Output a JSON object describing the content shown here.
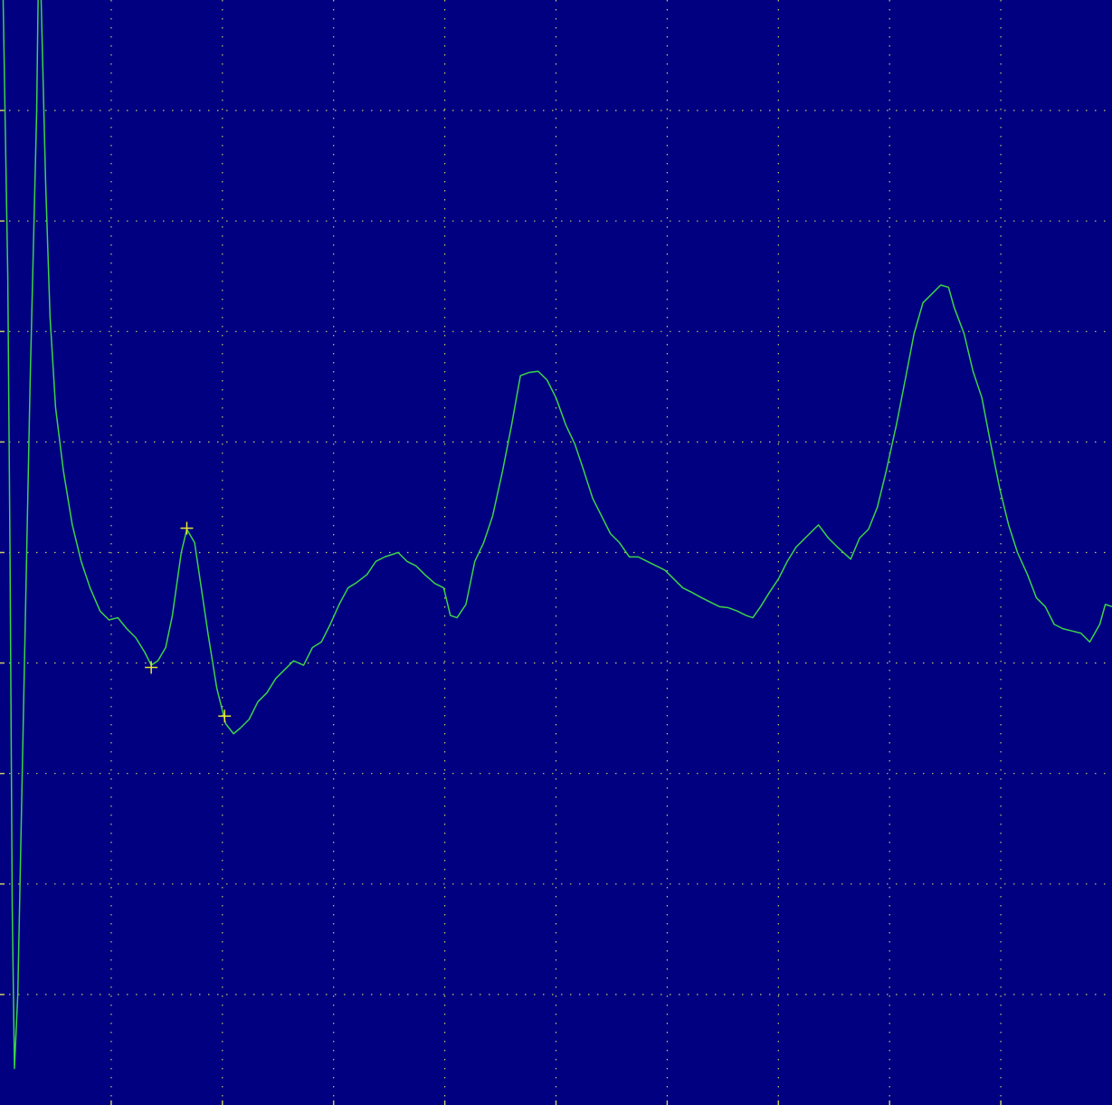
{
  "chart_data": {
    "type": "line",
    "xlim": [
      0,
      10
    ],
    "ylim": [
      -5,
      5
    ],
    "xticks": [
      1,
      2,
      3,
      4,
      5,
      6,
      7,
      8,
      9
    ],
    "yticks": [
      -4,
      -3,
      -2,
      -1,
      0,
      1,
      2,
      3,
      4
    ],
    "grid": true,
    "background": "#000080",
    "grid_color": "#c8c864",
    "series": [
      {
        "color": "#3cd24a",
        "x": [
          0.02,
          0.07,
          0.09,
          0.11,
          0.13,
          0.16,
          0.21,
          0.27,
          0.33,
          0.35,
          0.37,
          0.41,
          0.45,
          0.5,
          0.57,
          0.65,
          0.73,
          0.81,
          0.9,
          0.98,
          1.06,
          1.14,
          1.22,
          1.3,
          1.36,
          1.42,
          1.49,
          1.55,
          1.63,
          1.68,
          1.75,
          1.81,
          1.87,
          1.95,
          2.03,
          2.1,
          2.16,
          2.24,
          2.32,
          2.4,
          2.48,
          2.56,
          2.64,
          2.73,
          2.81,
          2.89,
          2.97,
          3.05,
          3.13,
          3.21,
          3.3,
          3.38,
          3.46,
          3.58,
          3.66,
          3.74,
          3.82,
          3.91,
          3.99,
          4.05,
          4.11,
          4.19,
          4.27,
          4.35,
          4.43,
          4.52,
          4.6,
          4.68,
          4.76,
          4.84,
          4.92,
          5.0,
          5.09,
          5.17,
          5.25,
          5.33,
          5.41,
          5.49,
          5.57,
          5.66,
          5.74,
          5.82,
          5.9,
          5.98,
          6.06,
          6.14,
          6.22,
          6.31,
          6.39,
          6.47,
          6.55,
          6.63,
          6.71,
          6.77,
          6.84,
          6.92,
          7.0,
          7.08,
          7.16,
          7.24,
          7.36,
          7.45,
          7.53,
          7.65,
          7.73,
          7.81,
          7.89,
          7.97,
          8.06,
          8.14,
          8.22,
          8.3,
          8.38,
          8.46,
          8.53,
          8.58,
          8.67,
          8.75,
          8.83,
          8.91,
          8.99,
          9.07,
          9.15,
          9.24,
          9.32,
          9.4,
          9.48,
          9.56,
          9.64,
          9.72,
          9.8,
          9.89,
          9.94,
          10.0
        ],
        "values": [
          5.5,
          2.5,
          0.0,
          -3.2,
          -4.67,
          -4.0,
          -1.5,
          1.5,
          4.0,
          5.6,
          5.0,
          3.36,
          2.13,
          1.31,
          0.74,
          0.25,
          -0.08,
          -0.32,
          -0.53,
          -0.61,
          -0.59,
          -0.69,
          -0.77,
          -0.9,
          -1.02,
          -0.98,
          -0.86,
          -0.57,
          0.0,
          0.21,
          0.09,
          -0.32,
          -0.73,
          -1.23,
          -1.55,
          -1.64,
          -1.59,
          -1.51,
          -1.35,
          -1.27,
          -1.14,
          -1.06,
          -0.98,
          -1.02,
          -0.86,
          -0.81,
          -0.65,
          -0.47,
          -0.32,
          -0.27,
          -0.2,
          -0.08,
          -0.04,
          0.0,
          -0.08,
          -0.12,
          -0.2,
          -0.28,
          -0.32,
          -0.57,
          -0.59,
          -0.47,
          -0.08,
          0.09,
          0.33,
          0.74,
          1.15,
          1.6,
          1.63,
          1.64,
          1.56,
          1.4,
          1.15,
          0.98,
          0.74,
          0.49,
          0.33,
          0.17,
          0.09,
          -0.04,
          -0.04,
          -0.08,
          -0.12,
          -0.16,
          -0.24,
          -0.32,
          -0.36,
          -0.41,
          -0.45,
          -0.49,
          -0.5,
          -0.53,
          -0.57,
          -0.59,
          -0.49,
          -0.36,
          -0.24,
          -0.08,
          0.05,
          0.13,
          0.25,
          0.13,
          0.05,
          -0.06,
          0.13,
          0.21,
          0.41,
          0.74,
          1.15,
          1.56,
          1.98,
          2.26,
          2.34,
          2.42,
          2.4,
          2.22,
          1.98,
          1.64,
          1.4,
          0.98,
          0.58,
          0.25,
          0.0,
          -0.2,
          -0.41,
          -0.49,
          -0.65,
          -0.69,
          -0.71,
          -0.73,
          -0.81,
          -0.65,
          -0.47,
          -0.49
        ]
      }
    ],
    "markers": {
      "color": "#e6e632",
      "x": [
        1.36,
        1.68,
        2.02
      ],
      "values": [
        -1.04,
        0.22,
        -1.48
      ]
    }
  }
}
